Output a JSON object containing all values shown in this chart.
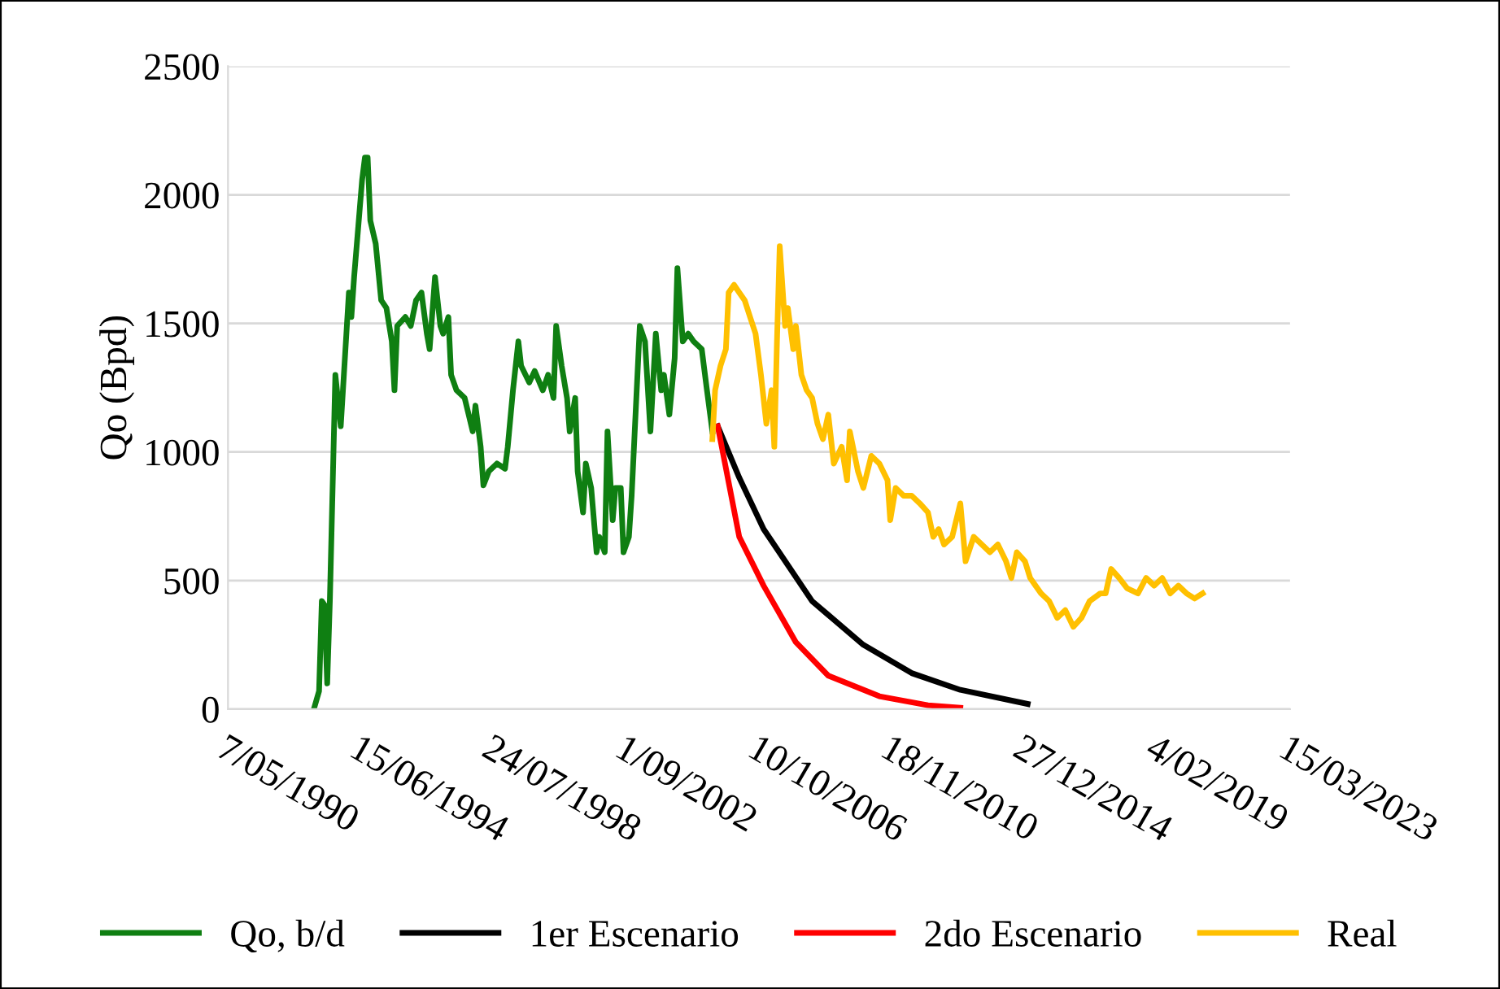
{
  "chart_data": {
    "type": "line",
    "ylabel": "Qo (Bpd)",
    "ylim": [
      0,
      2500
    ],
    "yticks": [
      0,
      500,
      1000,
      1500,
      2000,
      2500
    ],
    "xlim": [
      "1990-05-07",
      "2023-03-15"
    ],
    "xticks": [
      {
        "value": "1990-05-07",
        "label": "7/05/1990"
      },
      {
        "value": "1994-06-15",
        "label": "15/06/1994"
      },
      {
        "value": "1998-07-24",
        "label": "24/07/1998"
      },
      {
        "value": "2002-09-01",
        "label": "1/09/2002"
      },
      {
        "value": "2006-10-10",
        "label": "10/10/2006"
      },
      {
        "value": "2010-11-18",
        "label": "18/11/2010"
      },
      {
        "value": "2014-12-27",
        "label": "27/12/2014"
      },
      {
        "value": "2019-02-04",
        "label": "4/02/2019"
      },
      {
        "value": "2023-03-15",
        "label": "15/03/2023"
      }
    ],
    "grid": "y",
    "legend": "bottom",
    "marker": "none",
    "line_style": "solid",
    "series": [
      {
        "name": "Qo, b/d",
        "color": "#0f7f12",
        "x": [
          "1993-01",
          "1993-03",
          "1993-04",
          "1993-05",
          "1993-06",
          "1993-07",
          "1993-09",
          "1993-11",
          "1994-02",
          "1994-03",
          "1994-04",
          "1994-07",
          "1994-08",
          "1994-09",
          "1994-10",
          "1994-12",
          "1995-02",
          "1995-04",
          "1995-06",
          "1995-07",
          "1995-08",
          "1995-11",
          "1996-01",
          "1996-03",
          "1996-05",
          "1996-07",
          "1996-08",
          "1996-10",
          "1996-12",
          "1997-01",
          "1997-03",
          "1997-04",
          "1997-06",
          "1997-09",
          "1997-12",
          "1998-01",
          "1998-03",
          "1998-04",
          "1998-06",
          "1998-09",
          "1998-12",
          "1999-01",
          "1999-03",
          "1999-05",
          "1999-06",
          "1999-09",
          "1999-11",
          "2000-02",
          "2000-04",
          "2000-06",
          "2000-07",
          "2000-09",
          "2000-11",
          "2000-12",
          "2001-02",
          "2001-03",
          "2001-05",
          "2001-06",
          "2001-08",
          "2001-10",
          "2001-11",
          "2002-01",
          "2002-02",
          "2002-04",
          "2002-05",
          "2002-07",
          "2002-08",
          "2002-10",
          "2002-11",
          "2003-02",
          "2003-04",
          "2003-06",
          "2003-08",
          "2003-10",
          "2003-11",
          "2004-01",
          "2004-03",
          "2004-04",
          "2004-06",
          "2004-08",
          "2004-10",
          "2005-01",
          "2005-03",
          "2005-05"
        ],
        "values": [
          0,
          70,
          420,
          405,
          100,
          420,
          1300,
          1100,
          1620,
          1525,
          1680,
          2060,
          2145,
          2145,
          1900,
          1810,
          1590,
          1560,
          1430,
          1240,
          1490,
          1525,
          1490,
          1590,
          1620,
          1460,
          1400,
          1680,
          1490,
          1460,
          1525,
          1300,
          1240,
          1210,
          1080,
          1180,
          1020,
          870,
          925,
          955,
          935,
          1020,
          1240,
          1430,
          1335,
          1270,
          1315,
          1240,
          1300,
          1210,
          1490,
          1335,
          1210,
          1080,
          1210,
          925,
          765,
          955,
          860,
          610,
          670,
          610,
          1080,
          735,
          860,
          860,
          610,
          670,
          830,
          1490,
          1430,
          1080,
          1460,
          1240,
          1300,
          1145,
          1365,
          1715,
          1430,
          1460,
          1430,
          1400,
          1240,
          1080
        ]
      },
      {
        "name": "1er Escenario",
        "color": "#000000",
        "x": [
          "2005-07",
          "2006-03",
          "2006-12",
          "2008-06",
          "2010-01",
          "2011-07",
          "2013-01",
          "2015-02"
        ],
        "values": [
          1100,
          900,
          700,
          420,
          250,
          140,
          75,
          20
        ]
      },
      {
        "name": "2do Escenario",
        "color": "#ff0000",
        "x": [
          "2005-07",
          "2006-03",
          "2006-12",
          "2007-12",
          "2008-12",
          "2010-07",
          "2012-01",
          "2013-01"
        ],
        "values": [
          1100,
          670,
          480,
          260,
          130,
          50,
          15,
          5
        ]
      },
      {
        "name": "Real",
        "color": "#ffc000",
        "x": [
          "2005-05",
          "2005-06",
          "2005-08",
          "2005-10",
          "2005-11",
          "2006-01",
          "2006-03",
          "2006-05",
          "2006-07",
          "2006-09",
          "2006-11",
          "2007-01",
          "2007-03",
          "2007-04",
          "2007-05",
          "2007-06",
          "2007-08",
          "2007-09",
          "2007-11",
          "2007-12",
          "2008-02",
          "2008-04",
          "2008-06",
          "2008-08",
          "2008-10",
          "2008-12",
          "2009-02",
          "2009-05",
          "2009-07",
          "2009-08",
          "2009-11",
          "2010-01",
          "2010-04",
          "2010-07",
          "2010-10",
          "2010-11",
          "2011-01",
          "2011-04",
          "2011-07",
          "2011-10",
          "2012-01",
          "2012-03",
          "2012-05",
          "2012-07",
          "2012-10",
          "2013-01",
          "2013-03",
          "2013-06",
          "2013-09",
          "2013-12",
          "2014-03",
          "2014-06",
          "2014-08",
          "2014-10",
          "2015-01",
          "2015-03",
          "2015-07",
          "2015-10",
          "2016-01",
          "2016-04",
          "2016-07",
          "2016-10",
          "2017-01",
          "2017-05",
          "2017-07",
          "2017-09",
          "2017-12",
          "2018-03",
          "2018-07",
          "2018-10",
          "2019-01",
          "2019-04",
          "2019-07",
          "2019-10",
          "2020-01",
          "2020-04",
          "2020-07"
        ],
        "values": [
          1050,
          1240,
          1335,
          1400,
          1620,
          1650,
          1620,
          1590,
          1525,
          1460,
          1300,
          1110,
          1240,
          1020,
          1430,
          1800,
          1490,
          1560,
          1400,
          1490,
          1300,
          1240,
          1210,
          1110,
          1050,
          1145,
          955,
          1020,
          890,
          1080,
          925,
          860,
          985,
          955,
          890,
          735,
          860,
          830,
          830,
          800,
          765,
          670,
          700,
          640,
          670,
          800,
          575,
          670,
          640,
          610,
          640,
          575,
          510,
          610,
          575,
          510,
          450,
          420,
          355,
          385,
          320,
          355,
          420,
          450,
          450,
          545,
          510,
          470,
          450,
          510,
          480,
          510,
          450,
          480,
          450,
          430,
          450
        ]
      }
    ]
  }
}
